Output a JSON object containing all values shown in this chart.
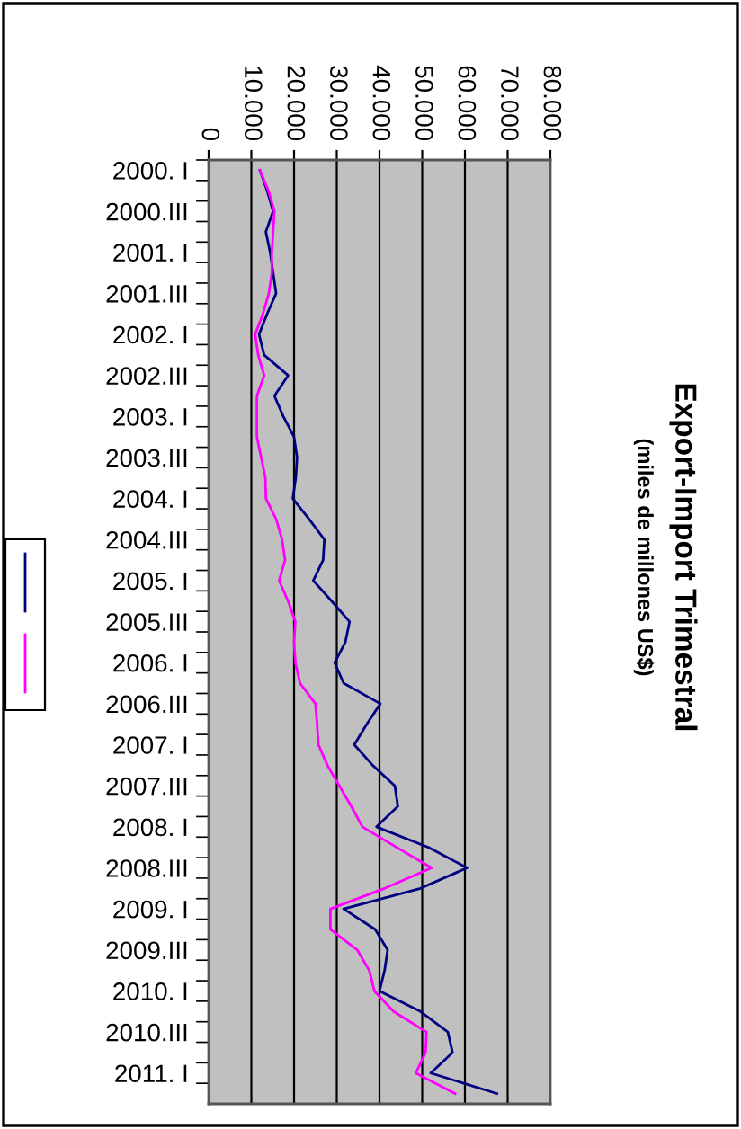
{
  "chart_data": {
    "type": "line",
    "orientation": "horizontal",
    "title": "Export-Import Trimestral",
    "subtitle": "(miles de millones US$)",
    "categories": [
      "2000. I",
      null,
      "2000.III",
      null,
      "2001. I",
      null,
      "2001.III",
      null,
      "2002. I",
      null,
      "2002.III",
      null,
      "2003. I",
      null,
      "2003.III",
      null,
      "2004. I",
      null,
      "2004.III",
      null,
      "2005. I",
      null,
      "2005.III",
      null,
      "2006. I",
      null,
      "2006.III",
      null,
      "2007. I",
      null,
      "2007.III",
      null,
      "2008. I",
      null,
      "2008.III",
      null,
      "2009. I",
      null,
      "2009.III",
      null,
      "2010. I",
      null,
      "2010.III",
      null,
      "2011. I",
      null
    ],
    "series": [
      {
        "color": "#000080",
        "values": [
          12000,
          13700,
          15100,
          13400,
          14400,
          15100,
          15800,
          13700,
          11800,
          13000,
          18600,
          15400,
          17500,
          20000,
          20700,
          20400,
          19700,
          23500,
          27100,
          26800,
          24500,
          28800,
          33000,
          32000,
          29500,
          31600,
          40200,
          37000,
          34100,
          38400,
          43600,
          44300,
          39300,
          51500,
          60500,
          49600,
          31600,
          39000,
          41900,
          41200,
          40000,
          49600,
          56000,
          57100,
          52000,
          67500
        ]
      },
      {
        "color": "#ff00ff",
        "values": [
          12000,
          14000,
          15400,
          15100,
          14800,
          14800,
          14100,
          12700,
          10900,
          11600,
          13000,
          11300,
          11300,
          11300,
          12300,
          13300,
          13400,
          15800,
          17200,
          17900,
          16500,
          18600,
          20300,
          20000,
          20300,
          21400,
          25000,
          25400,
          25700,
          27800,
          30600,
          33400,
          36000,
          44000,
          52200,
          41200,
          28500,
          28500,
          34800,
          37600,
          38800,
          43300,
          51000,
          50800,
          48500,
          57700
        ]
      }
    ],
    "xlim": [
      0,
      80000
    ],
    "xticks": [
      0,
      {
        "value": 10000,
        "label": "10.000"
      },
      {
        "value": 20000,
        "label": "20.000"
      },
      {
        "value": 30000,
        "label": "30.000"
      },
      {
        "value": 40000,
        "label": "40.000"
      },
      {
        "value": 50000,
        "label": "50.000"
      },
      {
        "value": 60000,
        "label": "60.000"
      },
      {
        "value": 70000,
        "label": "70.000"
      },
      {
        "value": 80000,
        "label": "80.000"
      }
    ],
    "grid": "x",
    "marker": "none",
    "line_style": "solid"
  }
}
